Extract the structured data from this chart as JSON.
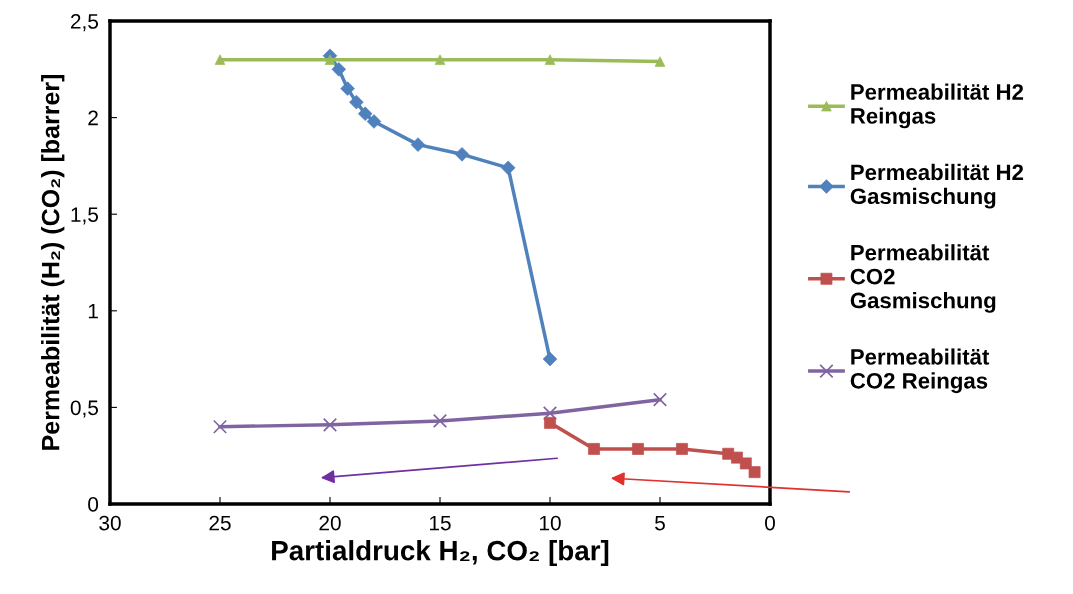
{
  "chart_data": {
    "type": "line",
    "xlabel": "Partialdruck H₂, CO₂ [bar]",
    "ylabel": "Permeabilität (H₂) (CO₂) [barrer]",
    "xlim": [
      30,
      0
    ],
    "xticks": [
      30,
      25,
      20,
      15,
      10,
      5,
      0
    ],
    "ylim": [
      0,
      2.5
    ],
    "yticks": [
      0,
      {
        "value": 0.5,
        "label": "0,5"
      },
      1,
      {
        "value": 1.5,
        "label": "1,5"
      },
      2,
      {
        "value": 2.5,
        "label": "2,5"
      }
    ],
    "grid": false,
    "legend": "right",
    "series": [
      {
        "name": "Permeabilität H2\nReingas",
        "color": "#9bbb59",
        "marker": "triangle",
        "x": [
          25,
          20,
          15,
          10,
          5
        ],
        "values": [
          2.3,
          2.3,
          2.3,
          2.3,
          2.29
        ]
      },
      {
        "name": "Permeabilität H2\nGasmischung",
        "color": "#4f81bd",
        "marker": "diamond",
        "x": [
          20,
          19.6,
          19.2,
          18.8,
          18.4,
          18.0,
          16.0,
          14.0,
          11.9,
          10
        ],
        "values": [
          2.32,
          2.25,
          2.15,
          2.08,
          2.02,
          1.98,
          1.86,
          1.81,
          1.74,
          0.75
        ]
      },
      {
        "name": "Permeabilität\nCO2\nGasmischung",
        "color": "#c0504d",
        "marker": "square",
        "x": [
          10,
          8,
          6,
          4,
          1.9,
          1.5,
          1.1,
          0.7
        ],
        "values": [
          0.42,
          0.285,
          0.285,
          0.285,
          0.26,
          0.24,
          0.21,
          0.165
        ]
      },
      {
        "name": "Permeabilität\nCO2 Reingas",
        "color": "#8064a2",
        "marker": "cross",
        "x": [
          25,
          20,
          15,
          10,
          5
        ],
        "values": [
          0.4,
          0.41,
          0.43,
          0.47,
          0.54
        ]
      }
    ]
  }
}
